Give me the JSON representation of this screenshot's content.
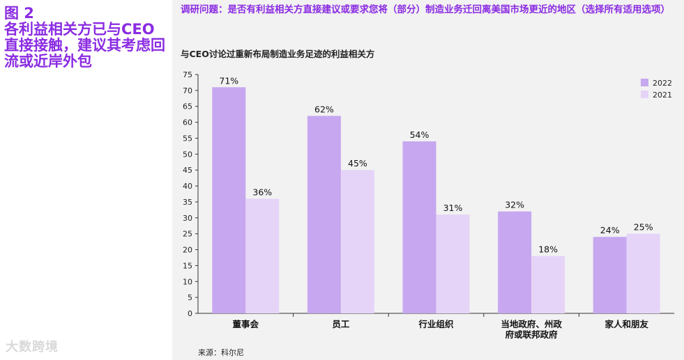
{
  "figure": {
    "title": "图 2\n各利益相关方已与CEO直接接触，建议其考虑回流或近岸外包",
    "watermark": "大数跨境"
  },
  "question": "调研问题：是否有利益相关方直接建议或要求您将（部分）制造业务迁回离美国市场更近的地区（选择所有适用选项）",
  "source": "来源：科尔尼",
  "colors": {
    "accent": "#8a2be2",
    "series_2022": "#c7a7ef",
    "series_2021": "#e6d4f8"
  },
  "chart_data": {
    "type": "bar",
    "title": "与CEO讨论过重新布局制造业务足迹的利益相关方",
    "categories": [
      "董事会",
      "员工",
      "行业组织",
      "当地政府、州政府或联邦政府",
      "家人和朋友"
    ],
    "category_lines": [
      [
        "董事会"
      ],
      [
        "员工"
      ],
      [
        "行业组织"
      ],
      [
        "当地政府、州政",
        "府或联邦政府"
      ],
      [
        "家人和朋友"
      ]
    ],
    "series": [
      {
        "name": "2022",
        "values": [
          71,
          62,
          54,
          32,
          24
        ],
        "labels": [
          "71%",
          "62%",
          "54%",
          "32%",
          "24%"
        ]
      },
      {
        "name": "2021",
        "values": [
          36,
          45,
          31,
          18,
          25
        ],
        "labels": [
          "36%",
          "45%",
          "31%",
          "18%",
          "25%"
        ]
      }
    ],
    "ylim": [
      0,
      75
    ],
    "yticks": [
      0,
      5,
      10,
      15,
      20,
      25,
      30,
      35,
      40,
      45,
      50,
      55,
      60,
      65,
      70,
      75
    ],
    "legend": "top-right",
    "grid": false
  }
}
